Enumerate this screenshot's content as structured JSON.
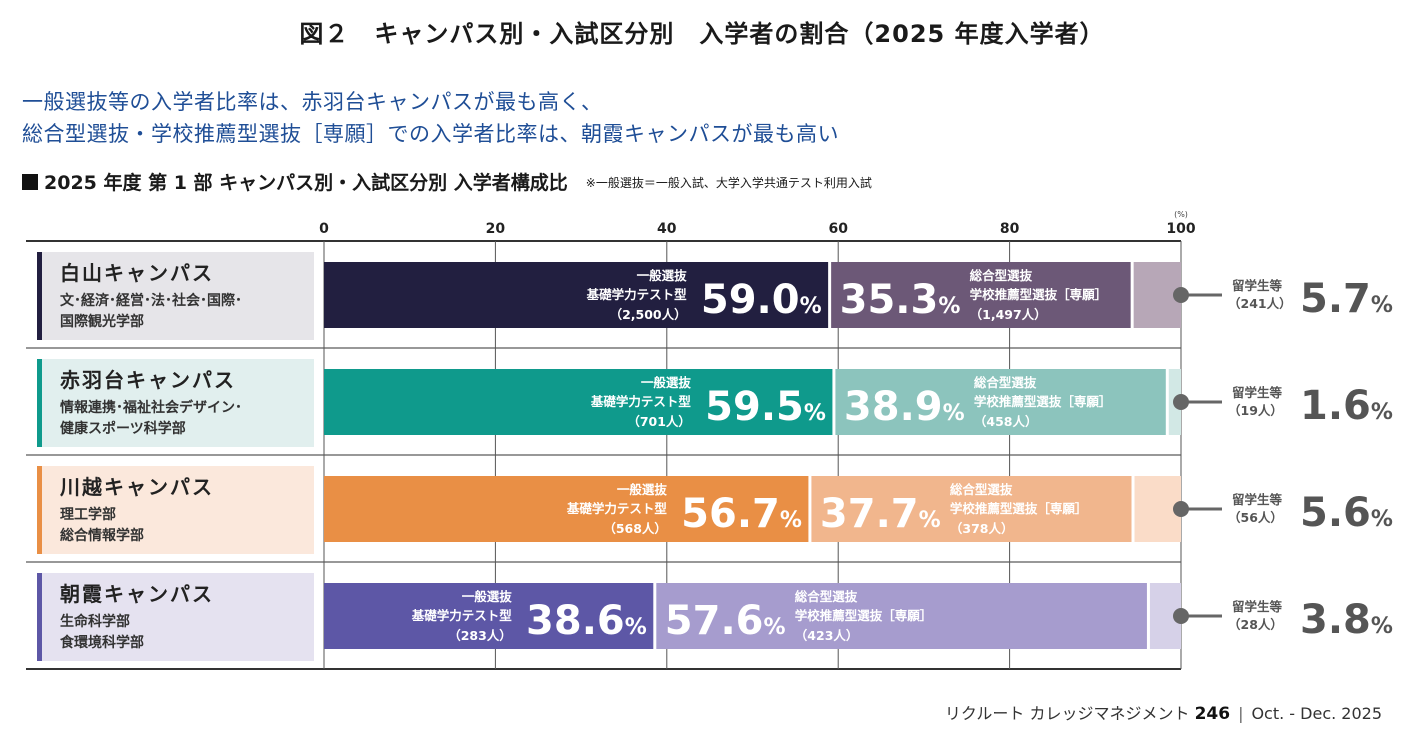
{
  "header": {
    "figure_title": "図２　キャンパス別・入試区分別　入学者の割合（2025 年度入学者）",
    "lead_line1": "一般選抜等の入学者比率は、赤羽台キャンパスが最も高く、",
    "lead_line2": "総合型選抜・学校推薦型選抜［専願］での入学者比率は、朝霞キャンパスが最も高い",
    "subhead": "2025 年度 第 1 部 キャンパス別・入試区分別 入学者構成比",
    "note": "※一般選抜＝一般入試、大学入学共通テスト利用入試"
  },
  "footer": {
    "publication": "リクルート カレッジマネジメント",
    "issue": "246",
    "separator": "|",
    "date": "Oct. - Dec. 2025"
  },
  "chart_data": {
    "type": "bar",
    "orientation": "horizontal-stacked",
    "title": "2025 年度 第 1 部 キャンパス別・入試区分別 入学者構成比",
    "xlabel": "",
    "unit_label": "(%)",
    "xlim": [
      0,
      100
    ],
    "xticks": [
      "0",
      "20",
      "40",
      "60",
      "80",
      "100"
    ],
    "grid": true,
    "segment_labels": {
      "general": [
        "一般選抜",
        "基礎学力テスト型"
      ],
      "comprehensive": [
        "総合型選抜",
        "学校推薦型選抜［専願］"
      ],
      "international": "留学生等"
    },
    "categories": [
      {
        "campus": "白山キャンパス",
        "faculties": [
          "文･経済･経営･法･社会･国際･",
          "国際観光学部"
        ],
        "colors": {
          "general": "#221f40",
          "comprehensive": "#6c5877",
          "international": "#b7a7b7",
          "label_bg": "#e6e5e9",
          "accent": "#221f40"
        },
        "general": {
          "value": 59.0,
          "count": "（2,500人）"
        },
        "comprehensive": {
          "value": 35.3,
          "count": "（1,497人）"
        },
        "international": {
          "value": 5.7,
          "count": "（241人）"
        }
      },
      {
        "campus": "赤羽台キャンパス",
        "faculties": [
          "情報連携･福祉社会デザイン･",
          "健康スポーツ科学部"
        ],
        "colors": {
          "general": "#0f9a8c",
          "comprehensive": "#8cc4bd",
          "international": "#d2e8e5",
          "label_bg": "#e1efee",
          "accent": "#0f9a8c"
        },
        "general": {
          "value": 59.5,
          "count": "（701人）"
        },
        "comprehensive": {
          "value": 38.9,
          "count": "（458人）"
        },
        "international": {
          "value": 1.6,
          "count": "（19人）"
        }
      },
      {
        "campus": "川越キャンパス",
        "faculties": [
          "理工学部",
          "総合情報学部"
        ],
        "colors": {
          "general": "#e98f45",
          "comprehensive": "#f1b68d",
          "international": "#fadcc8",
          "label_bg": "#fbe8dc",
          "accent": "#e98f45"
        },
        "general": {
          "value": 56.7,
          "count": "（568人）"
        },
        "comprehensive": {
          "value": 37.7,
          "count": "（378人）"
        },
        "international": {
          "value": 5.6,
          "count": "（56人）"
        }
      },
      {
        "campus": "朝霞キャンパス",
        "faculties": [
          "生命科学部",
          "食環境科学部"
        ],
        "colors": {
          "general": "#5d57a6",
          "comprehensive": "#a69cce",
          "international": "#d6d1e8",
          "label_bg": "#e5e2f0",
          "accent": "#5d57a6"
        },
        "general": {
          "value": 38.6,
          "count": "（283人）"
        },
        "comprehensive": {
          "value": 57.6,
          "count": "（423人）"
        },
        "international": {
          "value": 3.8,
          "count": "（28人）"
        }
      }
    ]
  }
}
